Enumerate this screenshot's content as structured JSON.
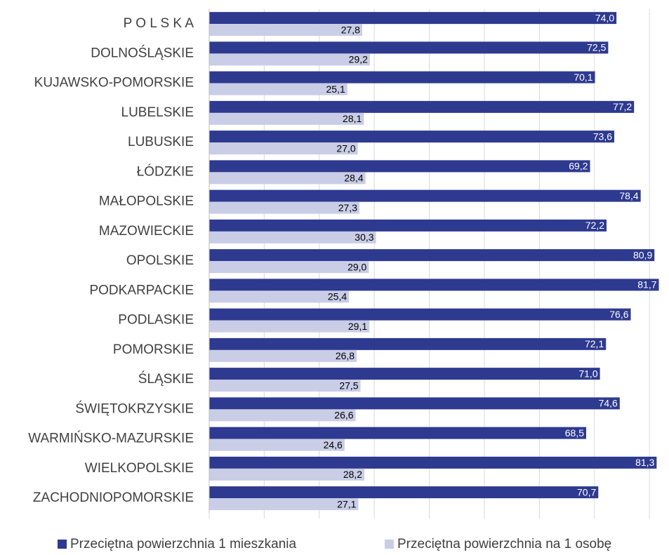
{
  "chart_data": {
    "type": "barh",
    "categories": [
      "P O L S K A",
      "DOLNOŚLĄSKIE",
      "KUJAWSKO-POMORSKIE",
      "LUBELSKIE",
      "LUBUSKIE",
      "ŁÓDZKIE",
      "MAŁOPOLSKIE",
      "MAZOWIECKIE",
      "OPOLSKIE",
      "PODKARPACKIE",
      "PODLASKIE",
      "POMORSKIE",
      "ŚLĄSKIE",
      "ŚWIĘTOKRZYSKIE",
      "WARMIŃSKO-MAZURSKIE",
      "WIELKOPOLSKIE",
      "ZACHODNIOPOMORSKIE"
    ],
    "series": [
      {
        "name": "Przeciętna powierzchnia 1 mieszkania",
        "color": "#2e3a8f",
        "values": [
          74.0,
          72.5,
          70.1,
          77.2,
          73.6,
          69.2,
          78.4,
          72.2,
          80.9,
          81.7,
          76.6,
          72.1,
          71.0,
          74.6,
          68.5,
          81.3,
          70.7
        ],
        "value_labels": [
          "74,0",
          "72,5",
          "70,1",
          "77,2",
          "73,6",
          "69,2",
          "78,4",
          "72,2",
          "80,9",
          "81,7",
          "76,6",
          "72,1",
          "71,0",
          "74,6",
          "68,5",
          "81,3",
          "70,7"
        ]
      },
      {
        "name": "Przeciętna powierzchnia na 1 osobę",
        "color": "#c9cde6",
        "values": [
          27.8,
          29.2,
          25.1,
          28.1,
          27.0,
          28.4,
          27.3,
          30.3,
          29.0,
          25.4,
          29.1,
          26.8,
          27.5,
          26.6,
          24.6,
          28.2,
          27.1
        ],
        "value_labels": [
          "27,8",
          "29,2",
          "25,1",
          "28,1",
          "27,0",
          "28,4",
          "27,3",
          "30,3",
          "29,0",
          "25,4",
          "29,1",
          "26,8",
          "27,5",
          "26,6",
          "24,6",
          "28,2",
          "27,1"
        ]
      }
    ],
    "xlim": [
      0,
      83
    ],
    "xticks": [
      0,
      10,
      20,
      30,
      40,
      50,
      60,
      70,
      80
    ],
    "grid": true,
    "legend": "bottom"
  }
}
